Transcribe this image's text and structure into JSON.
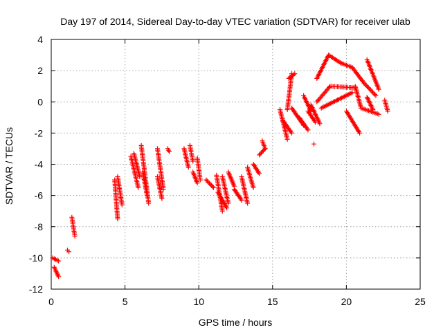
{
  "chart_data": {
    "type": "scatter",
    "title": "Day 197 of 2014, Sidereal Day-to-day VTEC variation (SDTVAR) for receiver ulab",
    "xlabel": "GPS time / hours",
    "ylabel": "SDTVAR / TECUs",
    "xlim": [
      0,
      25
    ],
    "ylim": [
      -12,
      4
    ],
    "xticks": [
      "0",
      "5",
      "10",
      "15",
      "20",
      "25"
    ],
    "yticks": [
      "-12",
      "-10",
      "-8",
      "-6",
      "-4",
      "-2",
      "0",
      "2",
      "4"
    ],
    "grid": true,
    "marker": "+",
    "color": "#ff0000",
    "segments": [
      [
        0.1,
        0.5,
        -10.0,
        -10.2
      ],
      [
        0.2,
        0.5,
        -10.6,
        -11.2
      ],
      [
        1.1,
        1.2,
        -9.5,
        -9.6
      ],
      [
        1.4,
        1.6,
        -7.4,
        -8.6
      ],
      [
        4.3,
        4.5,
        -5.0,
        -7.5
      ],
      [
        4.5,
        4.8,
        -4.8,
        -6.6
      ],
      [
        5.4,
        5.9,
        -3.5,
        -5.5
      ],
      [
        5.6,
        6.0,
        -3.3,
        -4.8
      ],
      [
        6.1,
        6.6,
        -2.8,
        -6.5
      ],
      [
        6.2,
        6.5,
        -4.5,
        -6.0
      ],
      [
        7.2,
        7.6,
        -3.0,
        -5.6
      ],
      [
        7.2,
        7.5,
        -4.8,
        -6.2
      ],
      [
        7.9,
        8.0,
        -3.0,
        -3.2
      ],
      [
        9.0,
        9.3,
        -3.0,
        -4.2
      ],
      [
        9.4,
        9.6,
        -2.8,
        -3.8
      ],
      [
        9.6,
        9.9,
        -4.5,
        -5.2
      ],
      [
        9.9,
        10.1,
        -3.6,
        -5.0
      ],
      [
        10.5,
        11.0,
        -5.0,
        -5.5
      ],
      [
        11.2,
        11.6,
        -4.7,
        -7.0
      ],
      [
        11.3,
        11.9,
        -5.8,
        -6.8
      ],
      [
        11.6,
        12.0,
        -4.8,
        -6.5
      ],
      [
        12.0,
        12.4,
        -4.5,
        -5.4
      ],
      [
        12.4,
        12.9,
        -5.6,
        -6.3
      ],
      [
        12.9,
        13.3,
        -4.8,
        -6.5
      ],
      [
        13.3,
        13.7,
        -4.2,
        -5.5
      ],
      [
        13.7,
        14.1,
        -4.0,
        -4.6
      ],
      [
        14.1,
        14.5,
        -3.4,
        -3.0
      ],
      [
        14.3,
        14.5,
        -2.5,
        -3.0
      ],
      [
        15.5,
        16.0,
        -0.5,
        -2.4
      ],
      [
        15.7,
        16.3,
        -1.2,
        -2.0
      ],
      [
        16.0,
        16.3,
        -0.5,
        1.8
      ],
      [
        16.1,
        16.5,
        1.5,
        1.8
      ],
      [
        16.3,
        17.1,
        -0.4,
        -1.5
      ],
      [
        16.8,
        17.4,
        -1.0,
        -1.8
      ],
      [
        17.1,
        17.6,
        0.4,
        -0.6
      ],
      [
        17.4,
        17.9,
        -0.6,
        -1.3
      ],
      [
        17.6,
        18.2,
        -0.2,
        -1.4
      ],
      [
        18.0,
        18.8,
        1.5,
        3.0
      ],
      [
        18.8,
        19.6,
        3.0,
        2.5
      ],
      [
        19.6,
        20.4,
        2.5,
        2.2
      ],
      [
        20.4,
        21.2,
        2.2,
        1.2
      ],
      [
        21.2,
        22.0,
        1.2,
        0.4
      ],
      [
        18.0,
        18.9,
        0.0,
        1.0
      ],
      [
        18.9,
        20.6,
        1.0,
        0.9
      ],
      [
        18.3,
        20.4,
        -0.4,
        0.6
      ],
      [
        20.0,
        20.9,
        -0.6,
        -2.0
      ],
      [
        20.6,
        21.0,
        1.0,
        -0.4
      ],
      [
        21.0,
        22.2,
        -0.4,
        -0.8
      ],
      [
        21.4,
        21.8,
        0.3,
        -0.5
      ],
      [
        21.4,
        22.2,
        2.7,
        0.8
      ],
      [
        22.6,
        22.8,
        0.1,
        -0.6
      ],
      [
        17.8,
        17.8,
        -2.7,
        -2.7
      ]
    ]
  }
}
